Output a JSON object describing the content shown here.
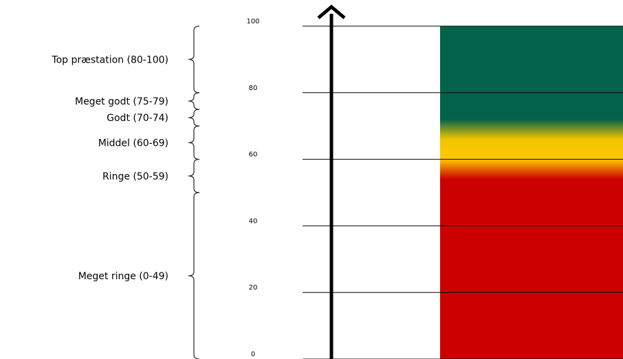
{
  "scale": {
    "min": 0,
    "max": 100,
    "ticks": [
      {
        "value": 0,
        "label": "0"
      },
      {
        "value": 20,
        "label": "20"
      },
      {
        "value": 40,
        "label": "40"
      },
      {
        "value": 60,
        "label": "60"
      },
      {
        "value": 80,
        "label": "80"
      },
      {
        "value": 100,
        "label": "100"
      }
    ]
  },
  "categories": [
    {
      "label": "Top præstation (80-100)",
      "from": 80,
      "to": 100
    },
    {
      "label": "Meget godt (75-79)",
      "from": 75,
      "to": 80
    },
    {
      "label": "Godt (70-74)",
      "from": 70,
      "to": 75
    },
    {
      "label": "Middel (60-69)",
      "from": 60,
      "to": 70
    },
    {
      "label": "Ringe (50-59)",
      "from": 50,
      "to": 60
    },
    {
      "label": "Meget ringe (0-49)",
      "from": 0,
      "to": 50
    }
  ],
  "gradient_stops": [
    {
      "value": 100,
      "color": "#03634a"
    },
    {
      "value": 72,
      "color": "#03634a"
    },
    {
      "value": 66,
      "color": "#f2c500"
    },
    {
      "value": 60,
      "color": "#ffc800"
    },
    {
      "value": 54,
      "color": "#cc0000"
    },
    {
      "value": 0,
      "color": "#cc0000"
    }
  ],
  "colors": {
    "line": "#000000",
    "arrow": "#000000",
    "brace": "#333333"
  }
}
